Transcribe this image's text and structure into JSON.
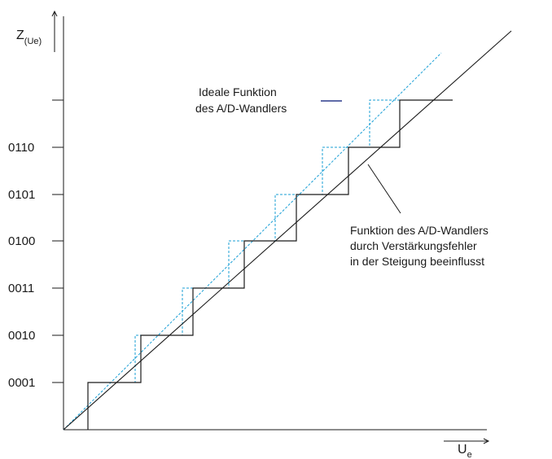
{
  "y_axis": {
    "symbol": "Z",
    "subscript": "(Ue)",
    "tick_labels": [
      "0001",
      "0010",
      "0011",
      "0100",
      "0101",
      "0110"
    ]
  },
  "x_axis": {
    "symbol": "U",
    "subscript": "e"
  },
  "legend_ideal": {
    "line1": "Ideale Funktion",
    "line2": "des A/D-Wandlers"
  },
  "annotation_gain": {
    "line1": "Funktion des A/D-Wandlers",
    "line2": "durch Verstärkungsfehler",
    "line3": "in der Steigung beeinflusst"
  },
  "colors": {
    "ideal": "#1a9fd6",
    "legend_line": "#2a3a8c",
    "ink": "#1a1a1a"
  }
}
